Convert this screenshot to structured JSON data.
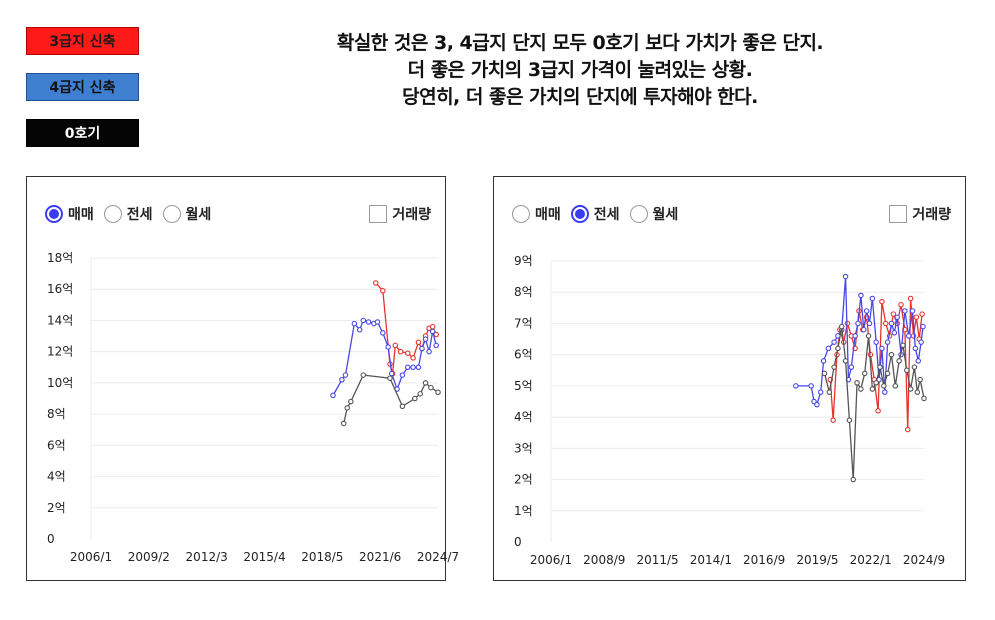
{
  "legend": {
    "red_label": "3급지 신축",
    "blue_label": "4급지 신축",
    "black_label": "0호기"
  },
  "headline": {
    "line1": "확실한 것은 3, 4급지 단지 모두 0호기 보다 가치가 좋은 단지.",
    "line2": "더 좋은 가치의 3급지 가격이 눌려있는 상황.",
    "line3": "당연히, 더 좋은 가치의 단지에 투자해야 한다."
  },
  "colors": {
    "red_series": "#e8322e",
    "blue_series": "#4747e8",
    "black_series": "#555555",
    "selected_radio": "#3b3bf0"
  },
  "left_panel": {
    "tabs": [
      {
        "label": "매매",
        "selected": true
      },
      {
        "label": "전세",
        "selected": false
      },
      {
        "label": "월세",
        "selected": false
      }
    ],
    "volume_label": "거래량"
  },
  "right_panel": {
    "tabs": [
      {
        "label": "매매",
        "selected": false
      },
      {
        "label": "전세",
        "selected": true
      },
      {
        "label": "월세",
        "selected": false
      }
    ],
    "volume_label": "거래량"
  },
  "chart_data": [
    {
      "type": "line",
      "title": "",
      "xlabel": "",
      "ylabel": "",
      "x_ticks": [
        "2006/1",
        "2009/2",
        "2012/3",
        "2015/4",
        "2018/5",
        "2021/6",
        "2024/7"
      ],
      "xlim": [
        2006.0,
        2025.5
      ],
      "y_ticks": [
        "0",
        "2억",
        "4억",
        "6억",
        "8억",
        "10억",
        "12억",
        "14억",
        "16억",
        "18억"
      ],
      "ylim": [
        0,
        18
      ],
      "grid": true,
      "series": [
        {
          "color": "red",
          "points": [
            [
              2022.0,
              16.4
            ],
            [
              2022.4,
              15.9
            ],
            [
              2022.8,
              11.2
            ],
            [
              2022.95,
              10.6
            ],
            [
              2023.1,
              12.4
            ],
            [
              2023.4,
              12.0
            ],
            [
              2023.8,
              11.9
            ],
            [
              2024.1,
              11.6
            ],
            [
              2024.4,
              12.6
            ],
            [
              2024.6,
              12.2
            ],
            [
              2024.8,
              13.0
            ],
            [
              2025.0,
              13.5
            ],
            [
              2025.2,
              13.6
            ],
            [
              2025.4,
              13.1
            ]
          ]
        },
        {
          "color": "blue",
          "points": [
            [
              2019.6,
              9.2
            ],
            [
              2020.1,
              10.2
            ],
            [
              2020.3,
              10.5
            ],
            [
              2020.8,
              13.8
            ],
            [
              2021.1,
              13.4
            ],
            [
              2021.3,
              14.0
            ],
            [
              2021.6,
              13.9
            ],
            [
              2021.9,
              13.8
            ],
            [
              2022.1,
              13.9
            ],
            [
              2022.4,
              13.2
            ],
            [
              2022.7,
              12.3
            ],
            [
              2022.9,
              10.6
            ],
            [
              2023.2,
              9.6
            ],
            [
              2023.5,
              10.5
            ],
            [
              2023.8,
              11.0
            ],
            [
              2024.1,
              11.0
            ],
            [
              2024.4,
              11.0
            ],
            [
              2024.6,
              12.2
            ],
            [
              2024.8,
              12.8
            ],
            [
              2025.0,
              12.0
            ],
            [
              2025.2,
              13.3
            ],
            [
              2025.4,
              12.4
            ]
          ]
        },
        {
          "color": "black",
          "points": [
            [
              2020.2,
              7.4
            ],
            [
              2020.4,
              8.4
            ],
            [
              2020.6,
              8.8
            ],
            [
              2021.3,
              10.5
            ],
            [
              2022.8,
              10.3
            ],
            [
              2023.5,
              8.5
            ],
            [
              2024.2,
              9.0
            ],
            [
              2024.5,
              9.3
            ],
            [
              2024.8,
              10.0
            ],
            [
              2025.1,
              9.7
            ],
            [
              2025.5,
              9.4
            ]
          ]
        }
      ]
    },
    {
      "type": "line",
      "title": "",
      "xlabel": "",
      "ylabel": "",
      "x_ticks": [
        "2006/1",
        "2008/9",
        "2011/5",
        "2014/1",
        "2016/9",
        "2019/5",
        "2022/1",
        "2024/9"
      ],
      "xlim": [
        2006.0,
        2025.5
      ],
      "y_ticks": [
        "0",
        "1억",
        "2억",
        "3억",
        "4억",
        "5억",
        "6억",
        "7억",
        "8억",
        "9억"
      ],
      "ylim": [
        0,
        9
      ],
      "grid": true,
      "series": [
        {
          "color": "red",
          "points": [
            [
              2020.6,
              5.2
            ],
            [
              2020.75,
              3.9
            ],
            [
              2020.95,
              6.0
            ],
            [
              2021.1,
              6.8
            ],
            [
              2021.3,
              6.4
            ],
            [
              2021.5,
              7.0
            ],
            [
              2021.7,
              6.6
            ],
            [
              2021.9,
              6.2
            ],
            [
              2022.1,
              7.4
            ],
            [
              2022.3,
              6.8
            ],
            [
              2022.5,
              7.2
            ],
            [
              2022.7,
              6.0
            ],
            [
              2022.9,
              5.2
            ],
            [
              2023.1,
              4.2
            ],
            [
              2023.3,
              7.7
            ],
            [
              2023.5,
              7.0
            ],
            [
              2023.7,
              6.6
            ],
            [
              2023.9,
              7.3
            ],
            [
              2024.1,
              7.0
            ],
            [
              2024.3,
              7.6
            ],
            [
              2024.5,
              6.8
            ],
            [
              2024.65,
              3.6
            ],
            [
              2024.8,
              7.8
            ],
            [
              2024.95,
              6.6
            ],
            [
              2025.1,
              7.2
            ],
            [
              2025.25,
              6.5
            ],
            [
              2025.4,
              7.3
            ]
          ]
        },
        {
          "color": "blue",
          "points": [
            [
              2018.8,
              5.0
            ],
            [
              2019.6,
              5.0
            ],
            [
              2019.75,
              4.5
            ],
            [
              2019.9,
              4.4
            ],
            [
              2020.1,
              4.8
            ],
            [
              2020.25,
              5.8
            ],
            [
              2020.5,
              6.2
            ],
            [
              2020.8,
              6.4
            ],
            [
              2021.0,
              6.6
            ],
            [
              2021.2,
              6.8
            ],
            [
              2021.4,
              8.5
            ],
            [
              2021.55,
              5.2
            ],
            [
              2021.7,
              5.6
            ],
            [
              2021.9,
              6.6
            ],
            [
              2022.05,
              7.0
            ],
            [
              2022.2,
              7.9
            ],
            [
              2022.35,
              6.8
            ],
            [
              2022.5,
              7.4
            ],
            [
              2022.65,
              7.0
            ],
            [
              2022.8,
              7.8
            ],
            [
              2023.0,
              6.4
            ],
            [
              2023.15,
              5.2
            ],
            [
              2023.3,
              6.2
            ],
            [
              2023.45,
              4.8
            ],
            [
              2023.6,
              6.4
            ],
            [
              2023.8,
              7.0
            ],
            [
              2023.95,
              6.7
            ],
            [
              2024.1,
              7.2
            ],
            [
              2024.3,
              6.0
            ],
            [
              2024.5,
              7.4
            ],
            [
              2024.7,
              6.6
            ],
            [
              2024.9,
              7.4
            ],
            [
              2025.05,
              6.2
            ],
            [
              2025.2,
              5.8
            ],
            [
              2025.35,
              6.4
            ],
            [
              2025.45,
              6.9
            ]
          ]
        },
        {
          "color": "black",
          "points": [
            [
              2020.3,
              5.4
            ],
            [
              2020.55,
              4.8
            ],
            [
              2020.8,
              5.6
            ],
            [
              2021.0,
              6.2
            ],
            [
              2021.2,
              6.9
            ],
            [
              2021.4,
              5.8
            ],
            [
              2021.6,
              3.9
            ],
            [
              2021.8,
              2.0
            ],
            [
              2022.0,
              5.1
            ],
            [
              2022.2,
              4.9
            ],
            [
              2022.4,
              5.4
            ],
            [
              2022.6,
              6.6
            ],
            [
              2022.8,
              4.9
            ],
            [
              2023.0,
              5.1
            ],
            [
              2023.2,
              5.6
            ],
            [
              2023.4,
              5.0
            ],
            [
              2023.6,
              5.4
            ],
            [
              2023.8,
              6.0
            ],
            [
              2024.0,
              5.0
            ],
            [
              2024.2,
              5.8
            ],
            [
              2024.4,
              6.3
            ],
            [
              2024.6,
              5.5
            ],
            [
              2024.8,
              4.9
            ],
            [
              2025.0,
              5.6
            ],
            [
              2025.15,
              4.8
            ],
            [
              2025.3,
              5.2
            ],
            [
              2025.5,
              4.6
            ]
          ]
        }
      ]
    }
  ]
}
